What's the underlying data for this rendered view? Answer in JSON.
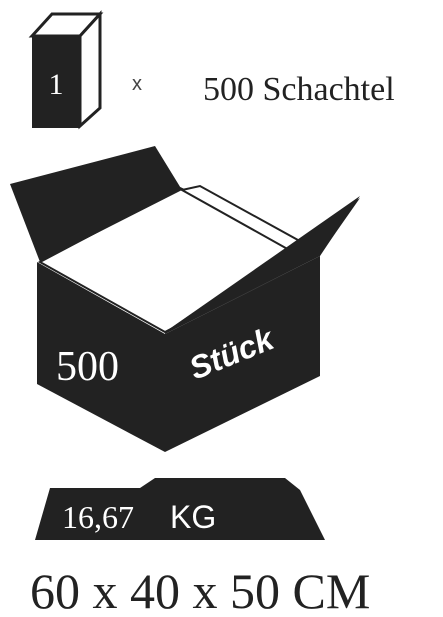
{
  "pack": {
    "count": "1",
    "times": "x",
    "quantity": "500 Schachtel"
  },
  "box": {
    "count": "500",
    "unit": "Stück"
  },
  "weight": {
    "value": "16,67",
    "unit": "KG"
  },
  "dimensions": "60 x 40 x 50 CM"
}
